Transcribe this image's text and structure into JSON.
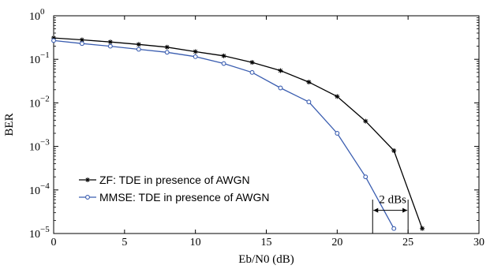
{
  "chart_data": {
    "type": "line",
    "xlabel": "Eb/N0 (dB)",
    "ylabel": "BER",
    "xlim": [
      0,
      30
    ],
    "ylim": [
      1e-05,
      1
    ],
    "yscale": "log",
    "x_ticks": [
      0,
      5,
      10,
      15,
      20,
      25,
      30
    ],
    "y_ticks": [
      {
        "value": 1,
        "base": "10",
        "exp": "0"
      },
      {
        "value": 0.1,
        "base": "10",
        "exp": "−1"
      },
      {
        "value": 0.01,
        "base": "10",
        "exp": "−2"
      },
      {
        "value": 0.001,
        "base": "10",
        "exp": "−3"
      },
      {
        "value": 0.0001,
        "base": "10",
        "exp": "−4"
      },
      {
        "value": 1e-05,
        "base": "10",
        "exp": "−5"
      }
    ],
    "grid": false,
    "legend_position": "bottom-left",
    "series": [
      {
        "name": "ZF: TDE in presence of AWGN",
        "color": "#000000",
        "marker": "star",
        "x": [
          0,
          2,
          4,
          6,
          8,
          10,
          12,
          14,
          16,
          18,
          20,
          22,
          24,
          26
        ],
        "y": [
          0.31,
          0.28,
          0.25,
          0.22,
          0.19,
          0.15,
          0.12,
          0.085,
          0.055,
          0.03,
          0.014,
          0.0038,
          0.0008,
          1.3e-05
        ]
      },
      {
        "name": "MMSE: TDE in presence of AWGN",
        "color": "#3a5db0",
        "marker": "circle",
        "x": [
          0,
          2,
          4,
          6,
          8,
          10,
          12,
          14,
          16,
          18,
          20,
          22,
          24
        ],
        "y": [
          0.27,
          0.23,
          0.2,
          0.17,
          0.145,
          0.115,
          0.08,
          0.05,
          0.022,
          0.0105,
          0.002,
          0.0002,
          1.3e-05
        ]
      }
    ],
    "annotations": [
      {
        "text": "2 dBs",
        "x_start": 22.5,
        "x_end": 25,
        "y": 3.4e-05,
        "y_line_bottom": 1e-05,
        "y_line_top": 6e-05
      }
    ]
  }
}
